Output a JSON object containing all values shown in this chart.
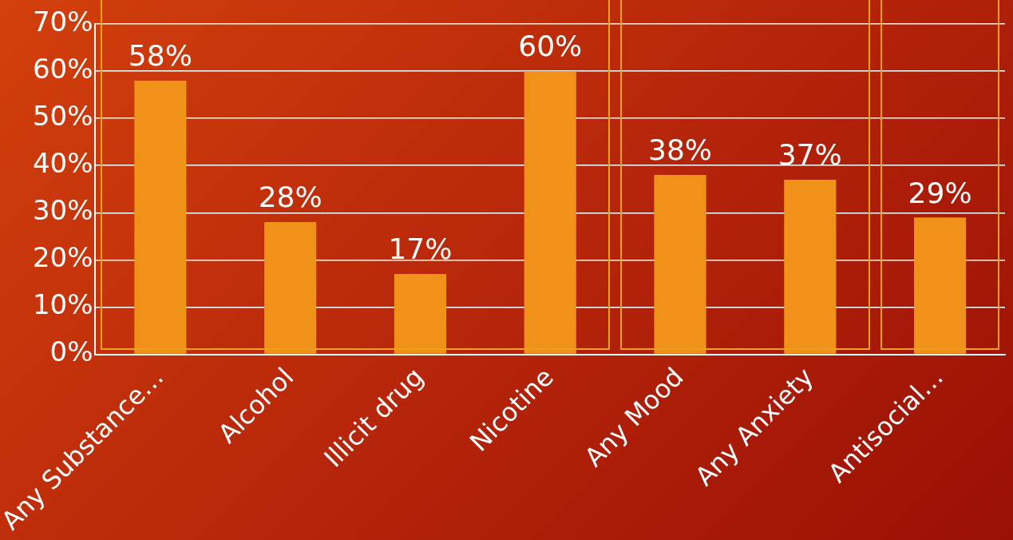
{
  "chart_data": {
    "type": "bar",
    "categories": [
      "Any Substance…",
      "Alcohol",
      "Illicit drug",
      "Nicotine",
      "Any Mood",
      "Any Anxiety",
      "Antisocial…"
    ],
    "values": [
      58,
      28,
      17,
      60,
      38,
      37,
      29
    ],
    "value_labels": [
      "58%",
      "28%",
      "17%",
      "60%",
      "38%",
      "37%",
      "29%"
    ],
    "color": "#f0921a",
    "ylim": [
      0,
      70
    ],
    "yticks": [
      {
        "value": 0,
        "label": "0%"
      },
      {
        "value": 10,
        "label": "10%"
      },
      {
        "value": 20,
        "label": "20%"
      },
      {
        "value": 30,
        "label": "30%"
      },
      {
        "value": 40,
        "label": "40%"
      },
      {
        "value": 50,
        "label": "50%"
      },
      {
        "value": 60,
        "label": "60%"
      },
      {
        "value": 70,
        "label": "70%"
      }
    ],
    "grid": "y",
    "legend": false
  }
}
